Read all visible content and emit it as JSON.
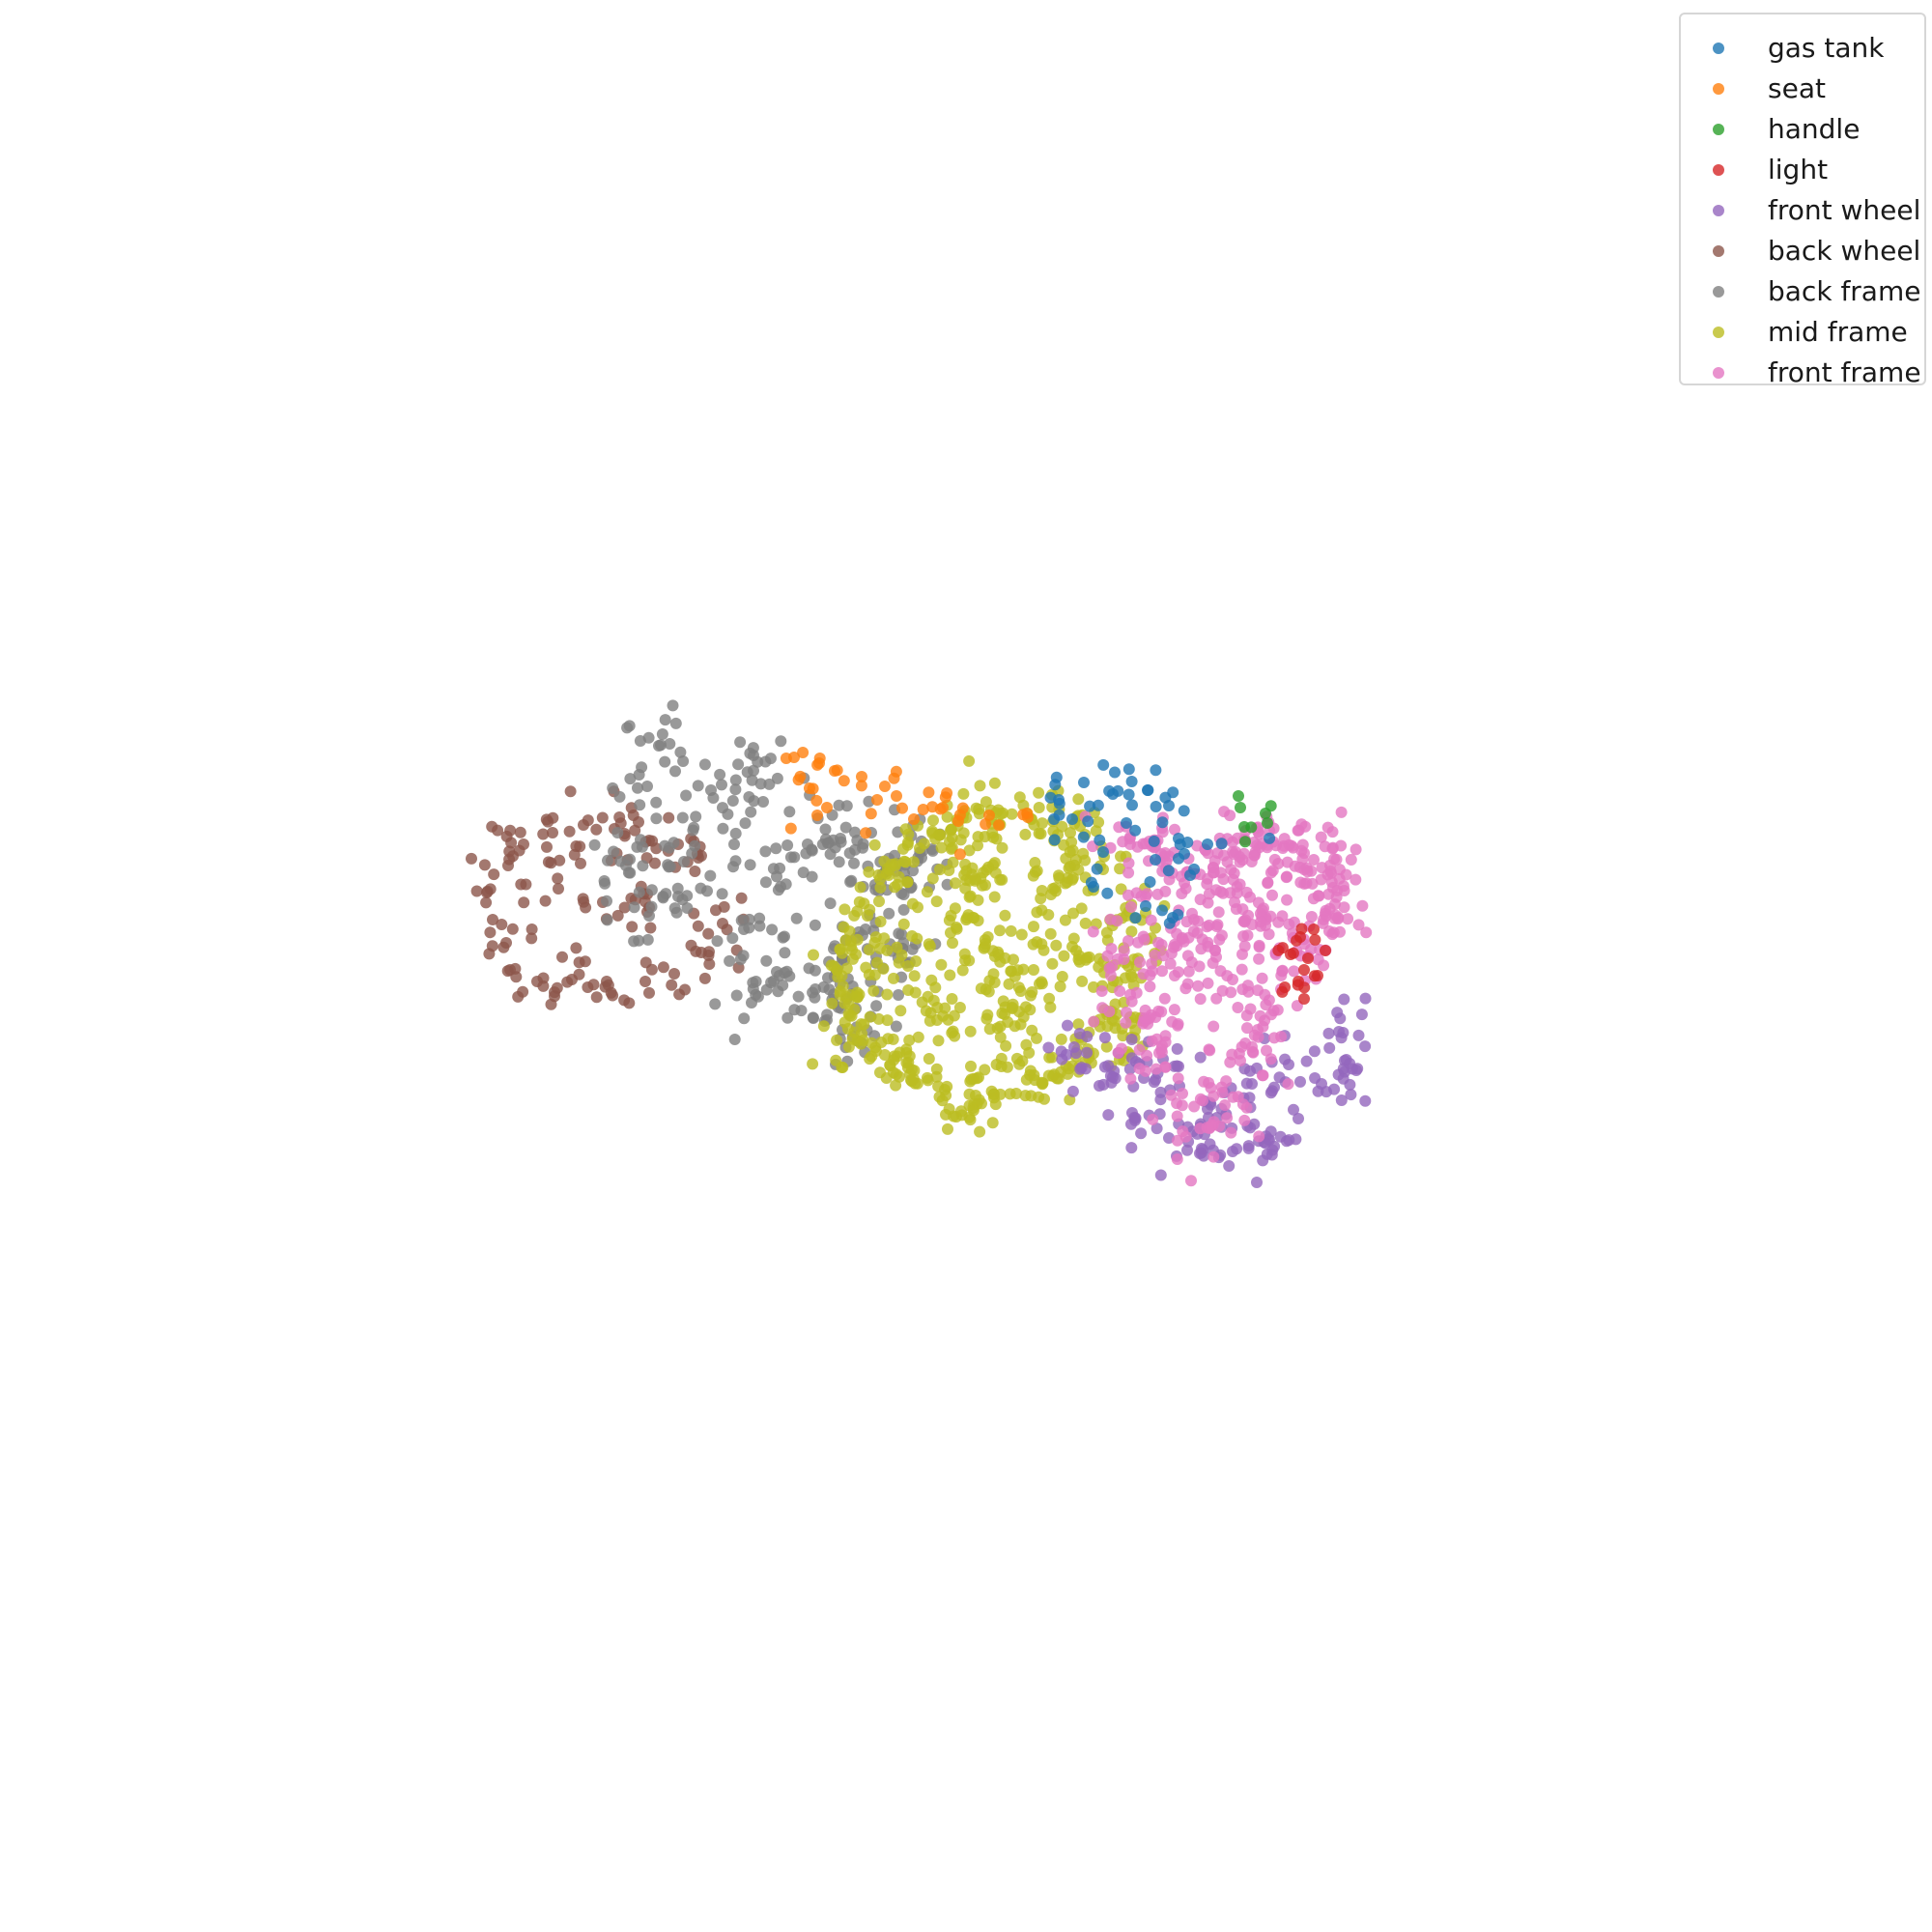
{
  "chart_data": {
    "type": "scatter",
    "title": "",
    "xlabel": "",
    "ylabel": "",
    "axes_visible": false,
    "grid": false,
    "legend_position": "top-right",
    "xlim": [
      0,
      100
    ],
    "ylim": [
      0,
      100
    ],
    "series": [
      {
        "name": "gas tank",
        "color": "#1f77b4",
        "count": 60,
        "points": [
          [
            54.8,
            58.6
          ],
          [
            56.1,
            59.5
          ],
          [
            57.6,
            58.9
          ],
          [
            59.4,
            59.1
          ],
          [
            60.5,
            58.3
          ],
          [
            55.5,
            57.6
          ],
          [
            58.3,
            57.4
          ],
          [
            61.0,
            56.6
          ],
          [
            62.5,
            56.3
          ],
          [
            57.1,
            55.9
          ],
          [
            59.8,
            55.5
          ],
          [
            61.6,
            54.7
          ],
          [
            56.6,
            54.1
          ],
          [
            59.3,
            53.1
          ],
          [
            60.7,
            52.5
          ]
        ]
      },
      {
        "name": "seat",
        "color": "#ff7f0e",
        "count": 45,
        "points": [
          [
            41.1,
            60.8
          ],
          [
            42.4,
            60.5
          ],
          [
            43.2,
            60.1
          ],
          [
            41.9,
            59.2
          ],
          [
            44.6,
            59.8
          ],
          [
            45.8,
            59.3
          ],
          [
            46.4,
            58.8
          ],
          [
            48.8,
            58.2
          ],
          [
            49.6,
            57.5
          ],
          [
            51.2,
            57.8
          ],
          [
            53.2,
            57.7
          ],
          [
            47.3,
            57.6
          ],
          [
            45.4,
            58.6
          ],
          [
            42.8,
            58.2
          ],
          [
            42.3,
            57.8
          ]
        ]
      },
      {
        "name": "handle",
        "color": "#2ca02c",
        "count": 8,
        "points": [
          [
            64.1,
            58.8
          ],
          [
            64.2,
            58.2
          ],
          [
            65.5,
            57.9
          ],
          [
            65.6,
            57.4
          ],
          [
            64.4,
            57.2
          ]
        ]
      },
      {
        "name": "light",
        "color": "#d62728",
        "count": 20,
        "points": [
          [
            66.8,
            50.6
          ],
          [
            67.7,
            50.4
          ],
          [
            68.6,
            50.8
          ],
          [
            67.5,
            49.8
          ],
          [
            67.2,
            49.2
          ],
          [
            68.2,
            49.5
          ],
          [
            66.5,
            48.9
          ],
          [
            67.5,
            48.3
          ],
          [
            68.0,
            51.9
          ],
          [
            67.3,
            51.5
          ]
        ]
      },
      {
        "name": "front wheel",
        "color": "#9467bd",
        "count": 170,
        "points": [
          [
            55.6,
            45.8
          ],
          [
            56.9,
            43.8
          ],
          [
            58.6,
            42.4
          ],
          [
            60.5,
            41.1
          ],
          [
            62.1,
            40.3
          ],
          [
            63.8,
            40.4
          ],
          [
            65.7,
            41.0
          ],
          [
            67.2,
            42.1
          ],
          [
            68.4,
            43.9
          ],
          [
            69.6,
            45.1
          ],
          [
            70.2,
            44.6
          ],
          [
            69.3,
            46.6
          ],
          [
            57.9,
            45.5
          ],
          [
            61.0,
            44.8
          ],
          [
            64.8,
            43.9
          ],
          [
            66.7,
            44.9
          ],
          [
            62.5,
            42.6
          ],
          [
            59.2,
            44.2
          ]
        ]
      },
      {
        "name": "back wheel",
        "color": "#8c564b",
        "count": 160,
        "points": [
          [
            25.2,
            53.8
          ],
          [
            25.5,
            52.4
          ],
          [
            26.2,
            51.2
          ],
          [
            26.4,
            49.8
          ],
          [
            27.8,
            49.2
          ],
          [
            29.6,
            49.3
          ],
          [
            31.4,
            49.2
          ],
          [
            33.4,
            49.2
          ],
          [
            34.9,
            49.6
          ],
          [
            36.3,
            50.7
          ],
          [
            37.4,
            52.2
          ],
          [
            36.3,
            55.7
          ],
          [
            35.1,
            56.3
          ],
          [
            33.6,
            56.5
          ],
          [
            31.8,
            57.1
          ],
          [
            30.2,
            57.3
          ],
          [
            28.6,
            56.9
          ],
          [
            27.1,
            56.3
          ],
          [
            26.3,
            55.2
          ],
          [
            28.9,
            54.0
          ],
          [
            31.2,
            53.3
          ],
          [
            33.5,
            52.8
          ]
        ]
      },
      {
        "name": "back frame",
        "color": "#7f7f7f",
        "count": 330,
        "points": [
          [
            34.1,
            61.4
          ],
          [
            33.5,
            59.3
          ],
          [
            36.8,
            59.1
          ],
          [
            39.0,
            60.9
          ],
          [
            39.5,
            58.5
          ],
          [
            38.0,
            56.3
          ],
          [
            35.4,
            55.4
          ],
          [
            32.4,
            55.2
          ],
          [
            33.6,
            52.6
          ],
          [
            35.1,
            53.6
          ],
          [
            38.5,
            51.9
          ],
          [
            40.4,
            54.1
          ],
          [
            41.8,
            56.3
          ],
          [
            43.5,
            56.6
          ],
          [
            45.1,
            56.9
          ],
          [
            45.6,
            54.3
          ],
          [
            44.8,
            51.9
          ],
          [
            43.6,
            50.4
          ],
          [
            42.2,
            48.8
          ],
          [
            40.2,
            49.7
          ],
          [
            38.9,
            48.1
          ],
          [
            42.1,
            47.3
          ],
          [
            43.6,
            46.7
          ],
          [
            44.3,
            47.8
          ],
          [
            46.8,
            54.8
          ],
          [
            47.7,
            55.6
          ],
          [
            46.7,
            50.9
          ]
        ]
      },
      {
        "name": "mid frame",
        "color": "#bcbd22",
        "count": 620,
        "points": [
          [
            44.0,
            48.5
          ],
          [
            44.6,
            46.5
          ],
          [
            45.8,
            45.4
          ],
          [
            47.1,
            44.4
          ],
          [
            48.9,
            43.6
          ],
          [
            50.5,
            43.3
          ],
          [
            52.6,
            43.4
          ],
          [
            54.5,
            44.3
          ],
          [
            56.3,
            45.7
          ],
          [
            57.8,
            47.5
          ],
          [
            58.4,
            50.0
          ],
          [
            58.3,
            52.6
          ],
          [
            57.1,
            55.0
          ],
          [
            55.4,
            56.9
          ],
          [
            53.4,
            57.6
          ],
          [
            51.3,
            57.6
          ],
          [
            49.2,
            57.0
          ],
          [
            47.6,
            56.1
          ],
          [
            46.0,
            54.7
          ],
          [
            44.9,
            52.6
          ],
          [
            44.3,
            50.6
          ],
          [
            47.0,
            50.0
          ],
          [
            49.5,
            52.0
          ],
          [
            51.5,
            50.5
          ],
          [
            53.5,
            49.8
          ],
          [
            55.5,
            51.0
          ],
          [
            52.0,
            47.5
          ],
          [
            48.5,
            47.2
          ],
          [
            50.5,
            54.5
          ],
          [
            54.5,
            54.0
          ]
        ]
      },
      {
        "name": "front frame",
        "color": "#e377c2",
        "count": 470,
        "points": [
          [
            58.5,
            56.3
          ],
          [
            60.1,
            55.8
          ],
          [
            59.3,
            53.6
          ],
          [
            61.3,
            54.3
          ],
          [
            62.8,
            55.1
          ],
          [
            63.8,
            55.9
          ],
          [
            64.9,
            56.4
          ],
          [
            66.4,
            56.1
          ],
          [
            68.0,
            55.5
          ],
          [
            68.9,
            54.8
          ],
          [
            69.1,
            53.2
          ],
          [
            68.8,
            51.8
          ],
          [
            67.7,
            50.5
          ],
          [
            66.3,
            48.8
          ],
          [
            65.1,
            46.7
          ],
          [
            64.2,
            45.1
          ],
          [
            63.4,
            42.8
          ],
          [
            62.6,
            41.6
          ],
          [
            61.2,
            43.4
          ],
          [
            60.0,
            45.5
          ],
          [
            59.5,
            47.3
          ],
          [
            58.3,
            47.6
          ],
          [
            59.0,
            50.2
          ],
          [
            58.4,
            51.3
          ],
          [
            60.8,
            49.5
          ],
          [
            62.9,
            50.8
          ],
          [
            63.8,
            49.3
          ],
          [
            65.5,
            52.1
          ],
          [
            63.9,
            53.3
          ],
          [
            61.8,
            52.4
          ]
        ]
      }
    ]
  }
}
